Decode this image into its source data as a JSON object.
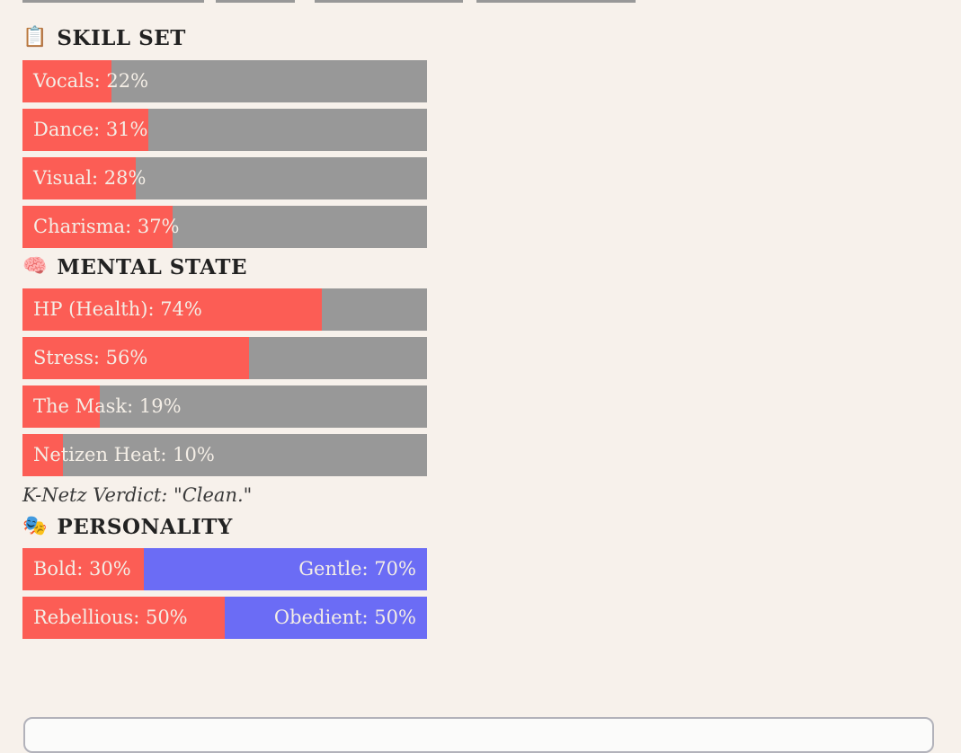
{
  "colors": {
    "bg": "#f7f1eb",
    "track_gray": "#989898",
    "fill_red": "#fc5d55",
    "fill_purple": "#6b6cf5",
    "bar_text": "#f4eee6",
    "heading_text": "#222222",
    "verdict_text": "#3a3a3a"
  },
  "skill_set": {
    "icon": "📋",
    "title": "SKILL SET",
    "bars": [
      {
        "label": "Vocals: 22%",
        "pct": 22
      },
      {
        "label": "Dance: 31%",
        "pct": 31
      },
      {
        "label": "Visual: 28%",
        "pct": 28
      },
      {
        "label": "Charisma: 37%",
        "pct": 37
      }
    ]
  },
  "mental_state": {
    "icon": "🧠",
    "title": "MENTAL STATE",
    "bars": [
      {
        "label": "HP (Health): 74%",
        "pct": 74
      },
      {
        "label": "Stress: 56%",
        "pct": 56
      },
      {
        "label": "The Mask: 19%",
        "pct": 19
      },
      {
        "label": "Netizen Heat: 10%",
        "pct": 10
      }
    ],
    "verdict": "K-Netz Verdict: \"Clean.\""
  },
  "personality": {
    "icon": "🎭",
    "title": "PERSONALITY",
    "bars": [
      {
        "left": "Bold: 30%",
        "left_pct": 30,
        "right": "Gentle: 70%",
        "right_pct": 70
      },
      {
        "left": "Rebellious: 50%",
        "left_pct": 50,
        "right": "Obedient: 50%",
        "right_pct": 50
      }
    ]
  }
}
